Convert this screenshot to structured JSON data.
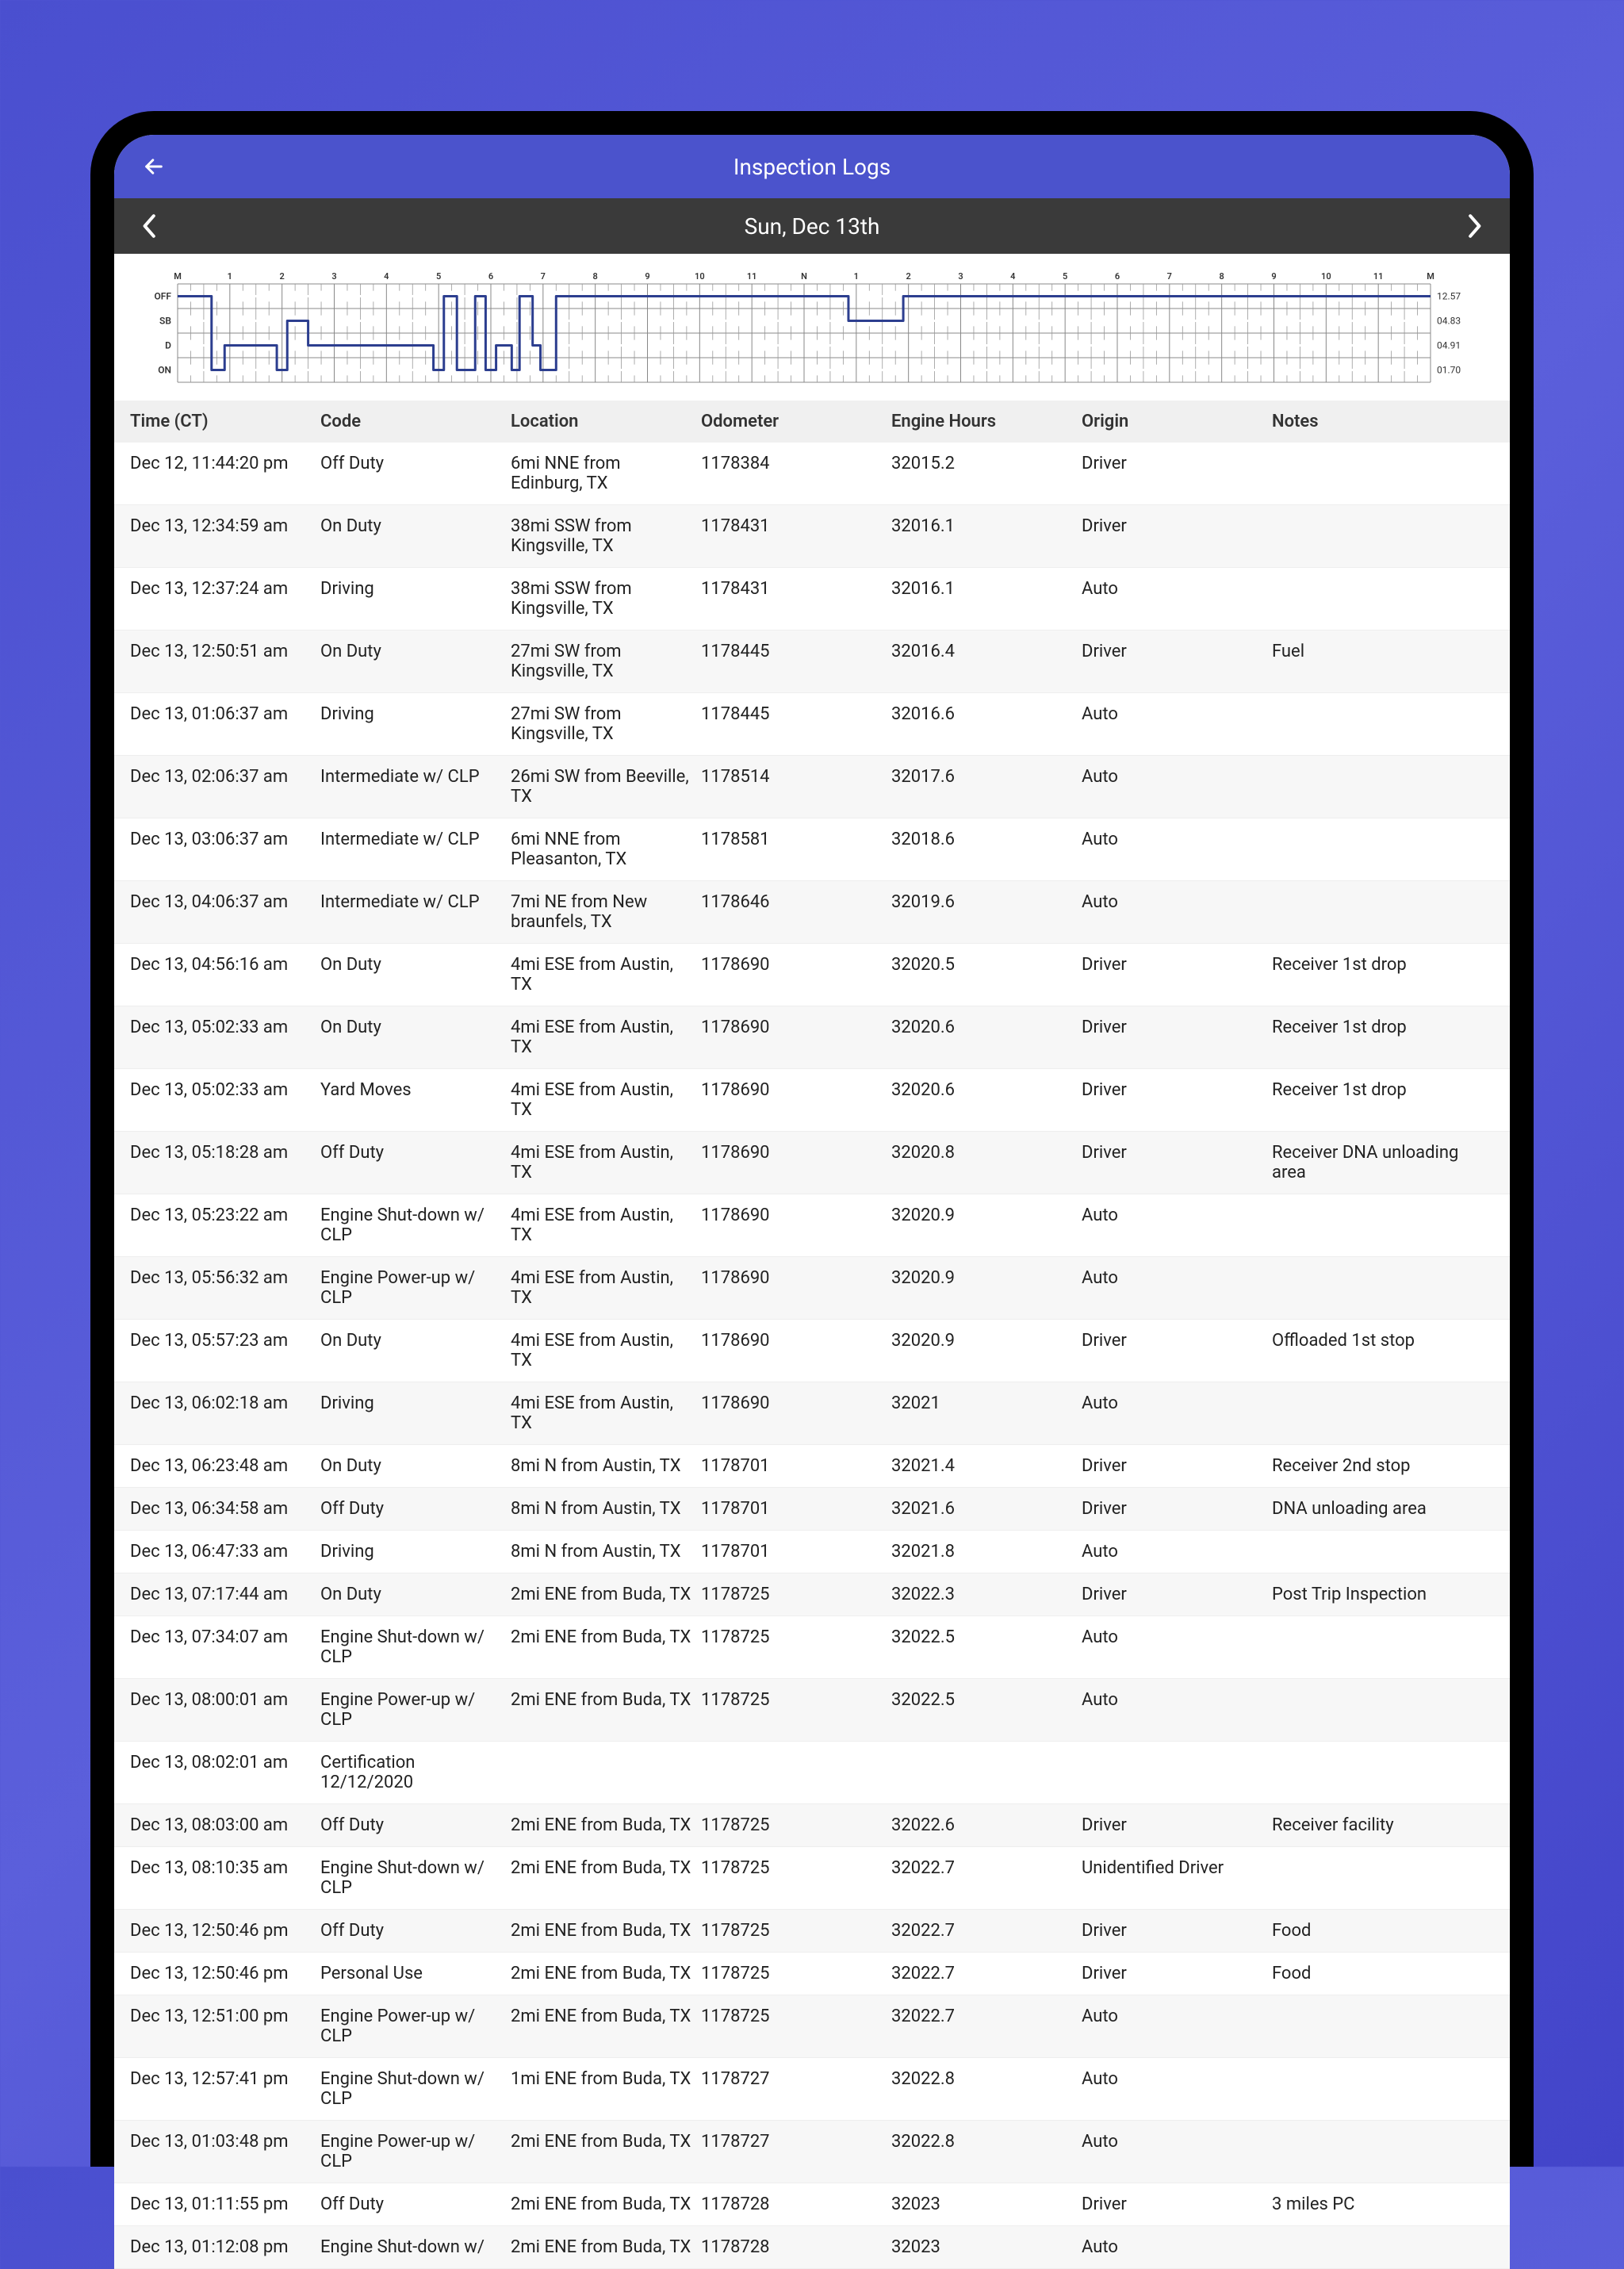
{
  "header": {
    "title": "Inspection Logs",
    "date": "Sun, Dec 13th"
  },
  "graph": {
    "row_labels": [
      "OFF",
      "SB",
      "D",
      "ON"
    ],
    "hour_labels_top": [
      "M",
      "1",
      "2",
      "3",
      "4",
      "5",
      "6",
      "7",
      "8",
      "9",
      "10",
      "11",
      "N",
      "1",
      "2",
      "3",
      "4",
      "5",
      "6",
      "7",
      "8",
      "9",
      "10",
      "11",
      "M"
    ],
    "totals": [
      "12.57",
      "04.83",
      "04.91",
      "01.70"
    ],
    "path_points": [
      [
        0,
        0
      ],
      [
        0.65,
        0
      ],
      [
        0.65,
        3
      ],
      [
        0.9,
        3
      ],
      [
        0.9,
        2
      ],
      [
        1.9,
        2
      ],
      [
        1.9,
        3
      ],
      [
        2.1,
        3
      ],
      [
        2.1,
        1
      ],
      [
        2.5,
        1
      ],
      [
        2.5,
        2
      ],
      [
        4.9,
        2
      ],
      [
        4.9,
        3
      ],
      [
        5.1,
        3
      ],
      [
        5.1,
        0
      ],
      [
        5.35,
        0
      ],
      [
        5.35,
        3
      ],
      [
        5.7,
        3
      ],
      [
        5.7,
        0
      ],
      [
        5.9,
        0
      ],
      [
        5.9,
        3
      ],
      [
        6.1,
        3
      ],
      [
        6.1,
        2
      ],
      [
        6.4,
        2
      ],
      [
        6.4,
        3
      ],
      [
        6.55,
        3
      ],
      [
        6.55,
        0
      ],
      [
        6.8,
        0
      ],
      [
        6.8,
        2
      ],
      [
        6.95,
        2
      ],
      [
        6.95,
        3
      ],
      [
        7.25,
        3
      ],
      [
        7.25,
        0
      ],
      [
        8.0,
        0
      ],
      [
        8.0,
        0
      ],
      [
        12.85,
        0
      ],
      [
        12.85,
        1
      ],
      [
        13.9,
        1
      ],
      [
        13.9,
        0
      ],
      [
        24,
        0
      ]
    ],
    "colors": {
      "line": "#2c3e8f",
      "grid": "#888",
      "major_grid": "#666"
    }
  },
  "table": {
    "columns": [
      "Time (CT)",
      "Code",
      "Location",
      "Odometer",
      "Engine Hours",
      "Origin",
      "Notes"
    ],
    "rows": [
      [
        "Dec 12, 11:44:20 pm",
        "Off Duty",
        "6mi NNE from Edinburg, TX",
        "1178384",
        "32015.2",
        "Driver",
        ""
      ],
      [
        "Dec 13, 12:34:59 am",
        "On Duty",
        "38mi SSW from Kingsville, TX",
        "1178431",
        "32016.1",
        "Driver",
        ""
      ],
      [
        "Dec 13, 12:37:24 am",
        "Driving",
        "38mi SSW from Kingsville, TX",
        "1178431",
        "32016.1",
        "Auto",
        ""
      ],
      [
        "Dec 13, 12:50:51 am",
        "On Duty",
        "27mi SW from Kingsville, TX",
        "1178445",
        "32016.4",
        "Driver",
        "Fuel"
      ],
      [
        "Dec 13, 01:06:37 am",
        "Driving",
        "27mi SW from Kingsville, TX",
        "1178445",
        "32016.6",
        "Auto",
        ""
      ],
      [
        "Dec 13, 02:06:37 am",
        "Intermediate w/ CLP",
        "26mi SW from Beeville, TX",
        "1178514",
        "32017.6",
        "Auto",
        ""
      ],
      [
        "Dec 13, 03:06:37 am",
        "Intermediate w/ CLP",
        "6mi NNE from Pleasanton, TX",
        "1178581",
        "32018.6",
        "Auto",
        ""
      ],
      [
        "Dec 13, 04:06:37 am",
        "Intermediate w/ CLP",
        "7mi NE from New braunfels, TX",
        "1178646",
        "32019.6",
        "Auto",
        ""
      ],
      [
        "Dec 13, 04:56:16 am",
        "On Duty",
        "4mi ESE from Austin, TX",
        "1178690",
        "32020.5",
        "Driver",
        "Receiver 1st drop"
      ],
      [
        "Dec 13, 05:02:33 am",
        "On Duty",
        "4mi ESE from Austin, TX",
        "1178690",
        "32020.6",
        "Driver",
        "Receiver 1st drop"
      ],
      [
        "Dec 13, 05:02:33 am",
        "Yard Moves",
        "4mi ESE from Austin, TX",
        "1178690",
        "32020.6",
        "Driver",
        "Receiver 1st drop"
      ],
      [
        "Dec 13, 05:18:28 am",
        "Off Duty",
        "4mi ESE from Austin, TX",
        "1178690",
        "32020.8",
        "Driver",
        "Receiver DNA unloading area"
      ],
      [
        "Dec 13, 05:23:22 am",
        "Engine Shut-down w/ CLP",
        "4mi ESE from Austin, TX",
        "1178690",
        "32020.9",
        "Auto",
        ""
      ],
      [
        "Dec 13, 05:56:32 am",
        "Engine Power-up w/ CLP",
        "4mi ESE from Austin, TX",
        "1178690",
        "32020.9",
        "Auto",
        ""
      ],
      [
        "Dec 13, 05:57:23 am",
        "On Duty",
        "4mi ESE from Austin, TX",
        "1178690",
        "32020.9",
        "Driver",
        "Offloaded 1st stop"
      ],
      [
        "Dec 13, 06:02:18 am",
        "Driving",
        "4mi ESE from Austin, TX",
        "1178690",
        "32021",
        "Auto",
        ""
      ],
      [
        "Dec 13, 06:23:48 am",
        "On Duty",
        "8mi N from Austin, TX",
        "1178701",
        "32021.4",
        "Driver",
        "Receiver 2nd stop"
      ],
      [
        "Dec 13, 06:34:58 am",
        "Off Duty",
        "8mi N from Austin, TX",
        "1178701",
        "32021.6",
        "Driver",
        "DNA unloading area"
      ],
      [
        "Dec 13, 06:47:33 am",
        "Driving",
        "8mi N from Austin, TX",
        "1178701",
        "32021.8",
        "Auto",
        ""
      ],
      [
        "Dec 13, 07:17:44 am",
        "On Duty",
        "2mi ENE from Buda, TX",
        "1178725",
        "32022.3",
        "Driver",
        "Post Trip Inspection"
      ],
      [
        "Dec 13, 07:34:07 am",
        "Engine Shut-down w/ CLP",
        "2mi ENE from Buda, TX",
        "1178725",
        "32022.5",
        "Auto",
        ""
      ],
      [
        "Dec 13, 08:00:01 am",
        "Engine Power-up w/ CLP",
        "2mi ENE from Buda, TX",
        "1178725",
        "32022.5",
        "Auto",
        ""
      ],
      [
        "Dec 13, 08:02:01 am",
        "Certification 12/12/2020",
        "",
        "",
        "",
        "",
        ""
      ],
      [
        "Dec 13, 08:03:00 am",
        "Off Duty",
        "2mi ENE from Buda, TX",
        "1178725",
        "32022.6",
        "Driver",
        "Receiver facility"
      ],
      [
        "Dec 13, 08:10:35 am",
        "Engine Shut-down w/ CLP",
        "2mi ENE from Buda, TX",
        "1178725",
        "32022.7",
        "Unidentified Driver",
        ""
      ],
      [
        "Dec 13, 12:50:46 pm",
        "Off Duty",
        "2mi ENE from Buda, TX",
        "1178725",
        "32022.7",
        "Driver",
        "Food"
      ],
      [
        "Dec 13, 12:50:46 pm",
        "Personal Use",
        "2mi ENE from Buda, TX",
        "1178725",
        "32022.7",
        "Driver",
        "Food"
      ],
      [
        "Dec 13, 12:51:00 pm",
        "Engine Power-up w/ CLP",
        "2mi ENE from Buda, TX",
        "1178725",
        "32022.7",
        "Auto",
        ""
      ],
      [
        "Dec 13, 12:57:41 pm",
        "Engine Shut-down w/ CLP",
        "1mi ENE from Buda, TX",
        "1178727",
        "32022.8",
        "Auto",
        ""
      ],
      [
        "Dec 13, 01:03:48 pm",
        "Engine Power-up w/ CLP",
        "2mi ENE from Buda, TX",
        "1178727",
        "32022.8",
        "Auto",
        ""
      ],
      [
        "Dec 13, 01:11:55 pm",
        "Off Duty",
        "2mi ENE from Buda, TX",
        "1178728",
        "32023",
        "Driver",
        "3 miles PC"
      ],
      [
        "Dec 13, 01:12:08 pm",
        "Engine Shut-down w/",
        "2mi ENE from Buda, TX",
        "1178728",
        "32023",
        "Auto",
        ""
      ]
    ]
  }
}
